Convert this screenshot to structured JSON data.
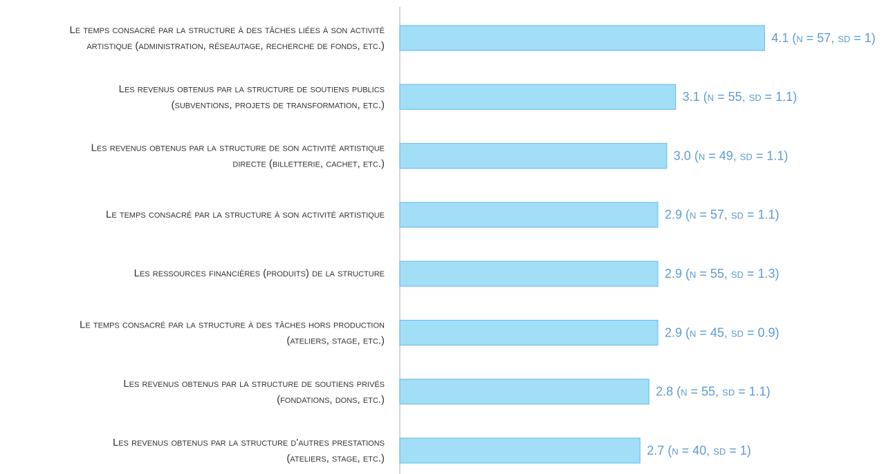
{
  "chart_data": {
    "type": "bar",
    "orientation": "horizontal",
    "categories": [
      [
        "Le temps consacré par la structure à des tâches liées à son activité",
        "artistique (administration, réseautage, recherche de fonds, etc.)"
      ],
      [
        "Les revenus obtenus par la structure de soutiens publics",
        "(subventions, projets de transformation, etc.)"
      ],
      [
        "Les revenus obtenus par la structure de son activité artistique",
        "directe (billetterie, cachet, etc.)"
      ],
      [
        "Le temps consacré par la structure à son activité artistique"
      ],
      [
        "Les ressources financières (produits) de la structure"
      ],
      [
        "Le temps consacré par la structure à des tâches hors production",
        "(ateliers, stage, etc.)"
      ],
      [
        "Les revenus obtenus par la structure de soutiens privés",
        "(fondations, dons, etc.)"
      ],
      [
        "Les revenus obtenus par la structure d'autres prestations",
        "(ateliers, stage, etc.)"
      ]
    ],
    "values": [
      4.1,
      3.1,
      3.0,
      2.9,
      2.9,
      2.9,
      2.8,
      2.7
    ],
    "value_labels": [
      "4.1 (n = 57, sd = 1)",
      "3.1 (n = 55, sd = 1.1)",
      "3.0 (n = 49, sd = 1.1)",
      "2.9 (n = 57, sd = 1.1)",
      "2.9 (n = 55, sd = 1.3)",
      "2.9 (n = 45, sd = 0.9)",
      "2.8 (n = 55, sd = 1.1)",
      "2.7 (n = 40, sd = 1)"
    ],
    "color": "#a3def7",
    "xlim": [
      0,
      5
    ]
  }
}
